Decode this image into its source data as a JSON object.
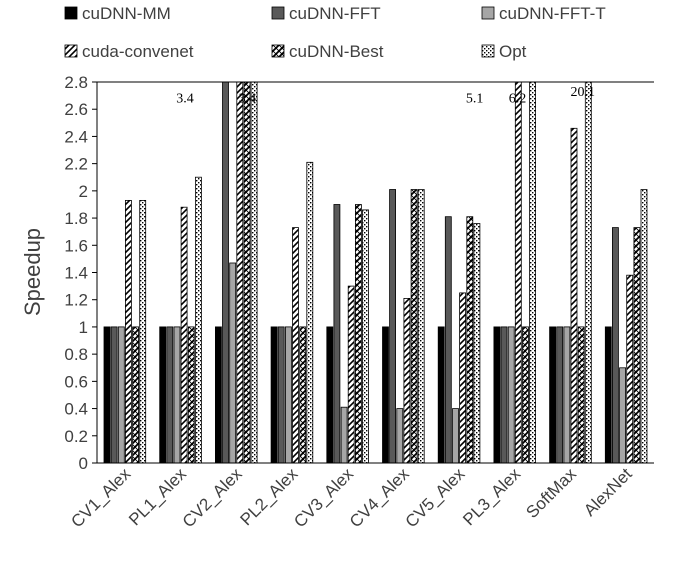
{
  "chart_data": {
    "type": "bar",
    "ylabel": "Speedup",
    "xlabel": "",
    "ylim": [
      0,
      2.8
    ],
    "yticks": [
      "0",
      "0.2",
      "0.4",
      "0.6",
      "0.8",
      "1",
      "1.2",
      "1.4",
      "1.6",
      "1.8",
      "2",
      "2.2",
      "2.4",
      "2.6",
      "2.8"
    ],
    "grid": false,
    "legend_position": "top",
    "categories": [
      "CV1_Alex",
      "PL1_Alex",
      "CV2_Alex",
      "PL2_Alex",
      "CV3_Alex",
      "CV4_Alex",
      "CV5_Alex",
      "PL3_Alex",
      "SoftMax",
      "AlexNet"
    ],
    "series": [
      {
        "name": "cuDNN-MM",
        "pattern": "solid-black",
        "values": [
          1,
          1,
          1,
          1,
          1,
          1,
          1,
          1,
          1,
          1
        ]
      },
      {
        "name": "cuDNN-FFT",
        "pattern": "solid-darkgray",
        "values": [
          1,
          1,
          2.8,
          1,
          1.9,
          2.01,
          1.81,
          1,
          1,
          1.73
        ]
      },
      {
        "name": "cuDNN-FFT-T",
        "pattern": "solid-lightgray",
        "values": [
          1,
          1,
          1.47,
          1,
          0.41,
          0.4,
          0.4,
          1,
          1,
          0.7
        ]
      },
      {
        "name": "cuda-convenet",
        "pattern": "diagonal-stripes",
        "values": [
          1.93,
          1.88,
          2.8,
          1.73,
          1.3,
          1.21,
          1.25,
          2.8,
          2.46,
          1.38
        ]
      },
      {
        "name": "cuDNN-Best",
        "pattern": "checker",
        "values": [
          1,
          1,
          2.8,
          1,
          1.9,
          2.01,
          1.81,
          1,
          1,
          1.73
        ]
      },
      {
        "name": "Opt",
        "pattern": "dots",
        "values": [
          1.93,
          2.1,
          2.8,
          2.21,
          1.86,
          2.01,
          1.76,
          2.8,
          2.8,
          2.01
        ]
      }
    ],
    "annotations": [
      {
        "text": "3.4",
        "category": "PL1_Alex"
      },
      {
        "text": "3.4",
        "category": "CV2_Alex"
      },
      {
        "text": "5.1",
        "category": "CV5_Alex"
      },
      {
        "text": "6.2",
        "category": "PL3_Alex"
      },
      {
        "text": "20.1",
        "category": "SoftMax"
      }
    ],
    "colors": {
      "solid-black": "#000000",
      "solid-darkgray": "#595959",
      "solid-lightgray": "#a6a6a6",
      "axis": "#000000",
      "text": "#404040"
    }
  }
}
